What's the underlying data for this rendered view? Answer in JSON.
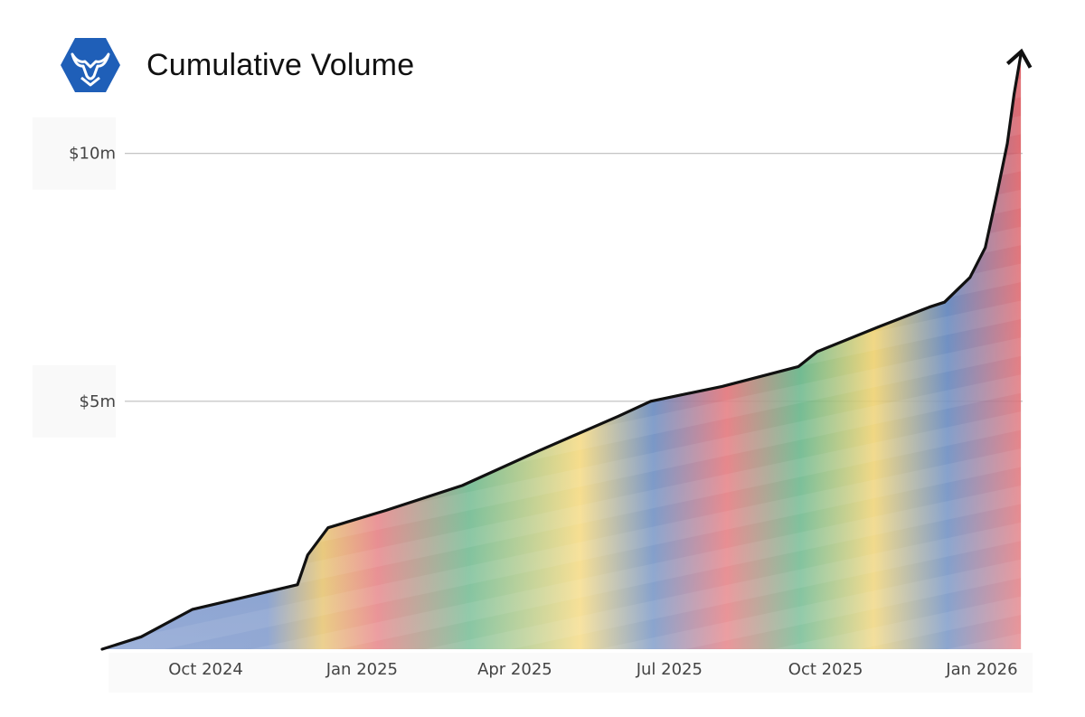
{
  "header": {
    "title": "Cumulative Volume",
    "logo_icon": "bull-hexagon-icon",
    "logo_color": "#1f5fb8"
  },
  "chart_data": {
    "type": "area",
    "title": "Cumulative Volume",
    "xlabel": "",
    "ylabel": "",
    "x_ticks": [
      "Oct 2024",
      "Jan 2025",
      "Apr 2025",
      "Jul 2025",
      "Oct 2025",
      "Jan 2026"
    ],
    "y_ticks": [
      "$5m",
      "$10m"
    ],
    "y_tick_values": [
      5000000,
      10000000
    ],
    "ylim": [
      0,
      12000000
    ],
    "xlim": [
      "2024-08-01",
      "2026-01-25"
    ],
    "grid": "horizontal",
    "line_color": "#111111",
    "series": [
      {
        "x": [
          "2024-08-01",
          "2024-08-24",
          "2024-09-23",
          "2024-11-24",
          "2024-11-30",
          "2024-12-12",
          "2025-01-15",
          "2025-03-01",
          "2025-04-15",
          "2025-06-01",
          "2025-06-20",
          "2025-08-01",
          "2025-09-15",
          "2025-09-26",
          "2025-11-01",
          "2025-12-01",
          "2025-12-10",
          "2025-12-25",
          "2026-01-03",
          "2026-01-10",
          "2026-01-16",
          "2026-01-20",
          "2026-01-24"
        ],
        "values": [
          0,
          250000,
          800000,
          1300000,
          1900000,
          2450000,
          2800000,
          3300000,
          4000000,
          4700000,
          5000000,
          5300000,
          5700000,
          6000000,
          6500000,
          6900000,
          7000000,
          7500000,
          8100000,
          9200000,
          10200000,
          11200000,
          12000000
        ]
      }
    ]
  }
}
